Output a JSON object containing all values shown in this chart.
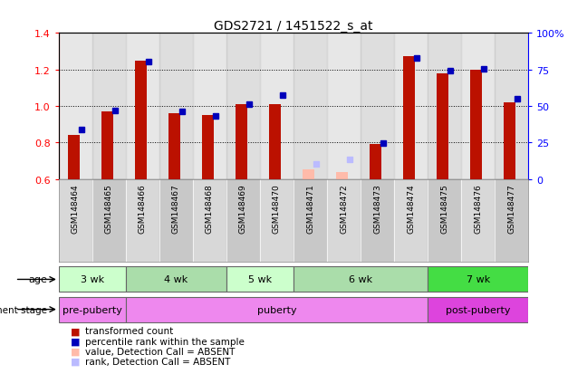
{
  "title": "GDS2721 / 1451522_s_at",
  "samples": [
    "GSM148464",
    "GSM148465",
    "GSM148466",
    "GSM148467",
    "GSM148468",
    "GSM148469",
    "GSM148470",
    "GSM148471",
    "GSM148472",
    "GSM148473",
    "GSM148474",
    "GSM148475",
    "GSM148476",
    "GSM148477"
  ],
  "red_values": [
    0.84,
    0.97,
    1.25,
    0.96,
    0.95,
    1.01,
    1.01,
    0.655,
    0.64,
    0.79,
    1.27,
    1.18,
    1.2,
    1.02
  ],
  "blue_values": [
    0.87,
    0.975,
    1.245,
    0.97,
    0.945,
    1.01,
    1.06,
    0.685,
    0.71,
    0.795,
    1.265,
    1.195,
    1.205,
    1.04
  ],
  "absent_mask": [
    false,
    false,
    false,
    false,
    false,
    false,
    false,
    true,
    true,
    false,
    false,
    false,
    false,
    false
  ],
  "ylim_left": [
    0.6,
    1.4
  ],
  "ylim_right": [
    0,
    100
  ],
  "yticks_left": [
    0.6,
    0.8,
    1.0,
    1.2,
    1.4
  ],
  "yticks_right": [
    0,
    25,
    50,
    75,
    100
  ],
  "right_tick_labels": [
    "0",
    "25",
    "50",
    "75",
    "100%"
  ],
  "age_groups": [
    {
      "label": "3 wk",
      "start": 0,
      "end": 2,
      "color": "#ccffcc"
    },
    {
      "label": "4 wk",
      "start": 2,
      "end": 5,
      "color": "#aaddaa"
    },
    {
      "label": "5 wk",
      "start": 5,
      "end": 7,
      "color": "#ccffcc"
    },
    {
      "label": "6 wk",
      "start": 7,
      "end": 11,
      "color": "#aaddaa"
    },
    {
      "label": "7 wk",
      "start": 11,
      "end": 14,
      "color": "#44dd44"
    }
  ],
  "dev_groups": [
    {
      "label": "pre-puberty",
      "start": 0,
      "end": 2,
      "color": "#ee88ee"
    },
    {
      "label": "puberty",
      "start": 2,
      "end": 11,
      "color": "#ee88ee"
    },
    {
      "label": "post-puberty",
      "start": 11,
      "end": 14,
      "color": "#dd44dd"
    }
  ],
  "red_color": "#bb1100",
  "blue_color": "#0000bb",
  "absent_red_color": "#ffbbaa",
  "absent_blue_color": "#bbbbff",
  "bar_bottom": 0.6,
  "legend_items": [
    {
      "label": "transformed count",
      "color": "#bb1100"
    },
    {
      "label": "percentile rank within the sample",
      "color": "#0000bb"
    },
    {
      "label": "value, Detection Call = ABSENT",
      "color": "#ffbbaa"
    },
    {
      "label": "rank, Detection Call = ABSENT",
      "color": "#bbbbff"
    }
  ]
}
